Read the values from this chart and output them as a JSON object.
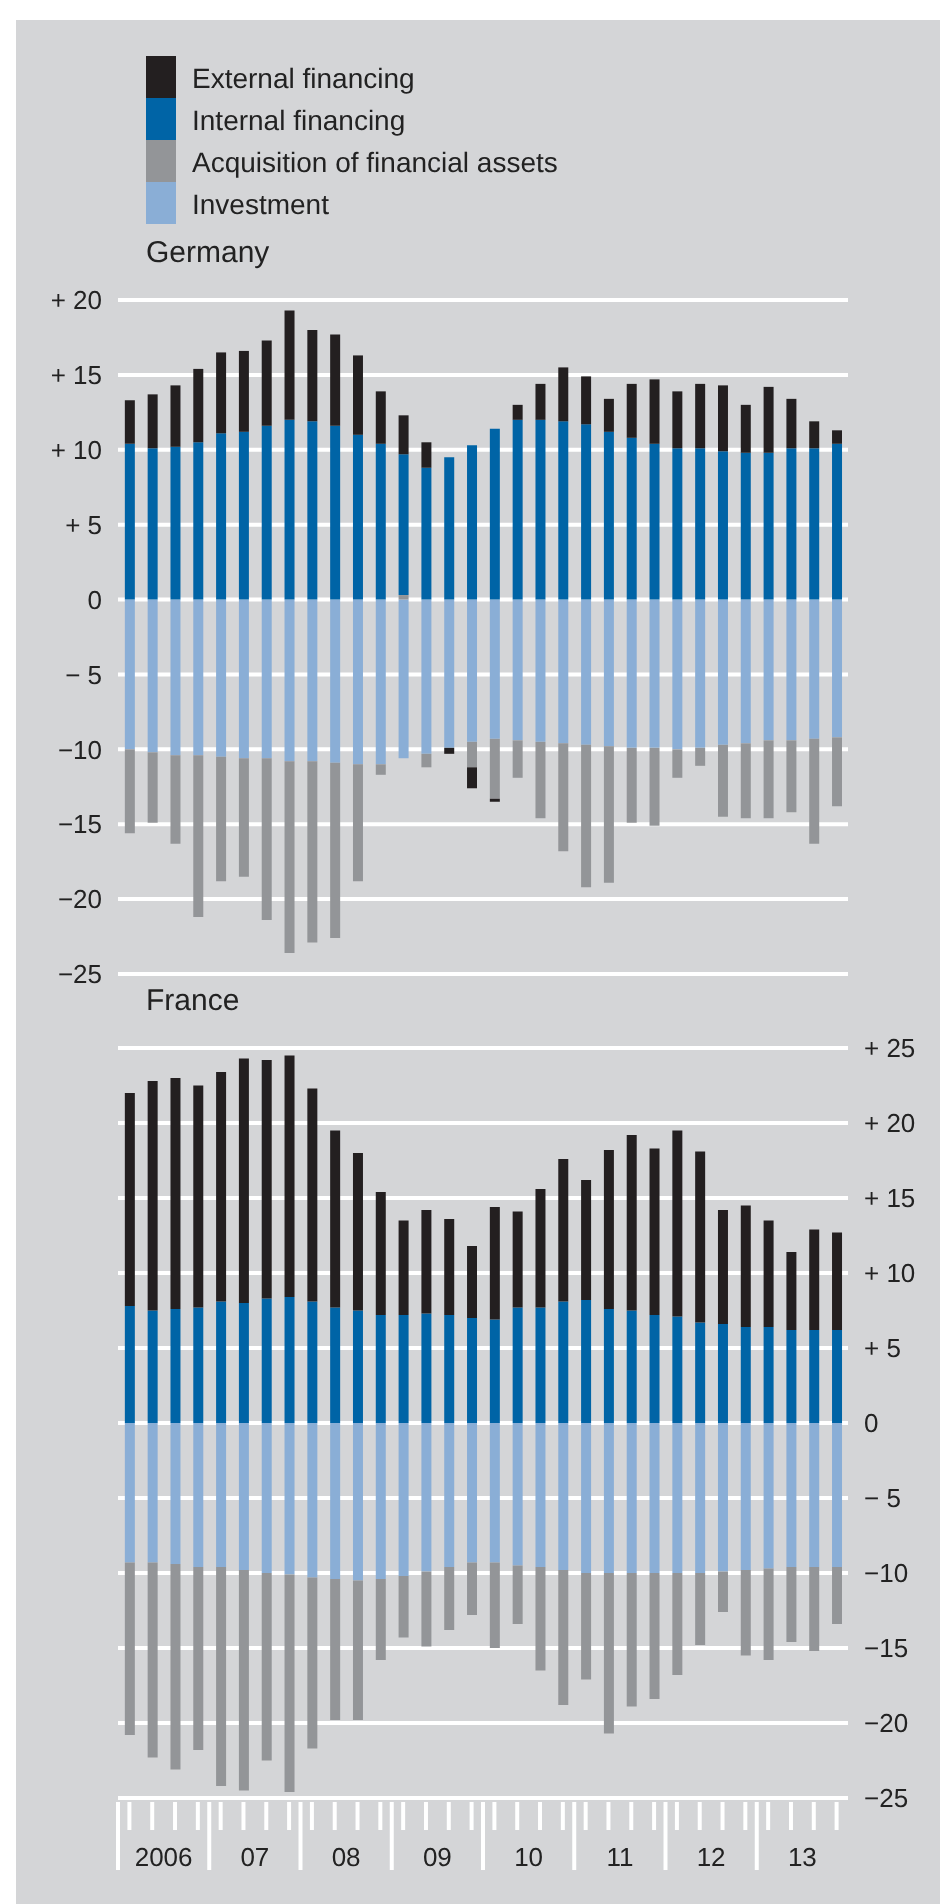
{
  "chart_data": [
    {
      "type": "bar",
      "title": "Germany",
      "stacked": true,
      "grid": "y",
      "legend": "top left",
      "tick_labels": "y",
      "categories": [
        null,
        "2006",
        null,
        null,
        null,
        "07",
        null,
        null,
        null,
        "08",
        null,
        null,
        null,
        "09",
        null,
        null,
        null,
        "10",
        null,
        null,
        null,
        "11",
        null,
        null,
        null,
        "12",
        null,
        null,
        null,
        "13",
        null,
        null
      ],
      "ylim": [
        -25,
        20
      ],
      "yticks": [
        {
          "value": 20,
          "label": "+ 20"
        },
        {
          "value": 15,
          "label": "+ 15"
        },
        {
          "value": 10,
          "label": "+ 10"
        },
        {
          "value": 5,
          "label": "+ 5"
        },
        0,
        {
          "value": -5,
          "label": "− 5"
        },
        {
          "value": -10,
          "label": "−10"
        },
        {
          "value": -15,
          "label": "−15"
        },
        {
          "value": -20,
          "label": "−20"
        },
        {
          "value": -25,
          "label": "−25"
        }
      ],
      "series": [
        {
          "name": "Investment",
          "color": "#8aaed6",
          "values": [
            -10.0,
            -10.2,
            -10.4,
            -10.4,
            -10.5,
            -10.6,
            -10.6,
            -10.8,
            -10.8,
            -10.9,
            -11.0,
            -11.0,
            -10.6,
            -10.3,
            -9.9,
            -9.5,
            -9.3,
            -9.4,
            -9.5,
            -9.6,
            -9.7,
            -9.8,
            -9.9,
            -9.9,
            -10.0,
            -9.9,
            -9.7,
            -9.6,
            -9.4,
            -9.4,
            -9.3,
            -9.2
          ]
        },
        {
          "name": "Acquisition of financial assets",
          "color": "#939598",
          "values": [
            -5.6,
            -4.7,
            -5.9,
            -10.8,
            -8.3,
            -7.9,
            -10.8,
            -12.8,
            -12.1,
            -11.7,
            -7.8,
            -0.7,
            0.3,
            -0.9,
            0,
            -1.7,
            -4.0,
            -2.5,
            -5.1,
            -7.2,
            -9.5,
            -9.1,
            -5.0,
            -5.2,
            -1.9,
            -1.2,
            -4.8,
            -5.0,
            -5.2,
            -4.8,
            -7.0,
            -4.6
          ]
        },
        {
          "name": "Internal financing",
          "color": "#0064a6",
          "values": [
            10.4,
            10.1,
            10.2,
            10.5,
            11.1,
            11.2,
            11.6,
            12.0,
            11.9,
            11.6,
            11.0,
            10.4,
            9.4,
            8.8,
            9.5,
            10.3,
            11.4,
            12.0,
            12.0,
            11.9,
            11.7,
            11.2,
            10.8,
            10.4,
            10.1,
            10.1,
            9.9,
            9.8,
            9.8,
            10.1,
            10.1,
            10.4
          ]
        },
        {
          "name": "External financing",
          "color": "#231f20",
          "values": [
            2.9,
            3.6,
            4.1,
            4.9,
            5.4,
            5.4,
            5.7,
            7.3,
            6.1,
            6.1,
            5.3,
            3.5,
            2.6,
            1.7,
            -0.4,
            -1.4,
            -0.2,
            1.0,
            2.4,
            3.6,
            3.2,
            2.2,
            3.6,
            4.3,
            3.8,
            4.3,
            4.4,
            3.2,
            4.4,
            3.3,
            1.8,
            0.9
          ]
        }
      ]
    },
    {
      "type": "bar",
      "title": "France",
      "stacked": true,
      "grid": "y",
      "categories": [
        null,
        "2006",
        null,
        null,
        null,
        "07",
        null,
        null,
        null,
        "08",
        null,
        null,
        null,
        "09",
        null,
        null,
        null,
        "10",
        null,
        null,
        null,
        "11",
        null,
        null,
        null,
        "12",
        null,
        null,
        null,
        "13",
        null,
        null
      ],
      "ylim": [
        -25,
        25
      ],
      "yticks": [
        {
          "value": 25,
          "label": "+ 25"
        },
        {
          "value": 20,
          "label": "+ 20"
        },
        {
          "value": 15,
          "label": "+ 15"
        },
        {
          "value": 10,
          "label": "+ 10"
        },
        {
          "value": 5,
          "label": "+ 5"
        },
        0,
        {
          "value": -5,
          "label": "− 5"
        },
        {
          "value": -10,
          "label": "−10"
        },
        {
          "value": -15,
          "label": "−15"
        },
        {
          "value": -20,
          "label": "−20"
        },
        {
          "value": -25,
          "label": "−25"
        }
      ],
      "series": [
        {
          "color": "#8aaed6",
          "values": [
            -9.3,
            -9.3,
            -9.4,
            -9.6,
            -9.6,
            -9.8,
            -10.0,
            -10.1,
            -10.3,
            -10.4,
            -10.5,
            -10.4,
            -10.2,
            -9.9,
            -9.6,
            -9.3,
            -9.3,
            -9.5,
            -9.6,
            -9.8,
            -10.0,
            -10.0,
            -10.0,
            -10.0,
            -10.0,
            -10.0,
            -9.9,
            -9.8,
            -9.7,
            -9.6,
            -9.6,
            -9.6
          ]
        },
        {
          "color": "#939598",
          "values": [
            -11.5,
            -13.0,
            -13.7,
            -12.2,
            -14.6,
            -14.7,
            -12.5,
            -14.5,
            -11.4,
            -9.4,
            -9.3,
            -5.4,
            -4.1,
            -5.0,
            -4.2,
            -3.5,
            -5.7,
            -3.9,
            -6.9,
            -9.0,
            -7.1,
            -10.7,
            -8.9,
            -8.4,
            -6.8,
            -4.8,
            -2.7,
            -5.7,
            -6.1,
            -5.0,
            -5.6,
            -3.8
          ]
        },
        {
          "color": "#0064a6",
          "values": [
            7.8,
            7.5,
            7.6,
            7.7,
            8.1,
            8.0,
            8.3,
            8.4,
            8.1,
            7.7,
            7.5,
            7.2,
            7.2,
            7.3,
            7.2,
            7.0,
            6.9,
            7.7,
            7.7,
            8.1,
            8.2,
            7.6,
            7.5,
            7.2,
            7.1,
            6.7,
            6.6,
            6.4,
            6.4,
            6.2,
            6.2,
            6.2
          ]
        },
        {
          "color": "#231f20",
          "values": [
            14.2,
            15.3,
            15.4,
            14.8,
            15.3,
            16.3,
            15.9,
            16.1,
            14.2,
            11.8,
            10.5,
            8.2,
            6.3,
            6.9,
            6.4,
            4.8,
            7.5,
            6.4,
            7.9,
            9.5,
            8.0,
            10.6,
            11.7,
            11.1,
            12.4,
            11.4,
            7.6,
            8.1,
            7.1,
            5.2,
            6.7,
            6.5
          ]
        }
      ]
    }
  ]
}
